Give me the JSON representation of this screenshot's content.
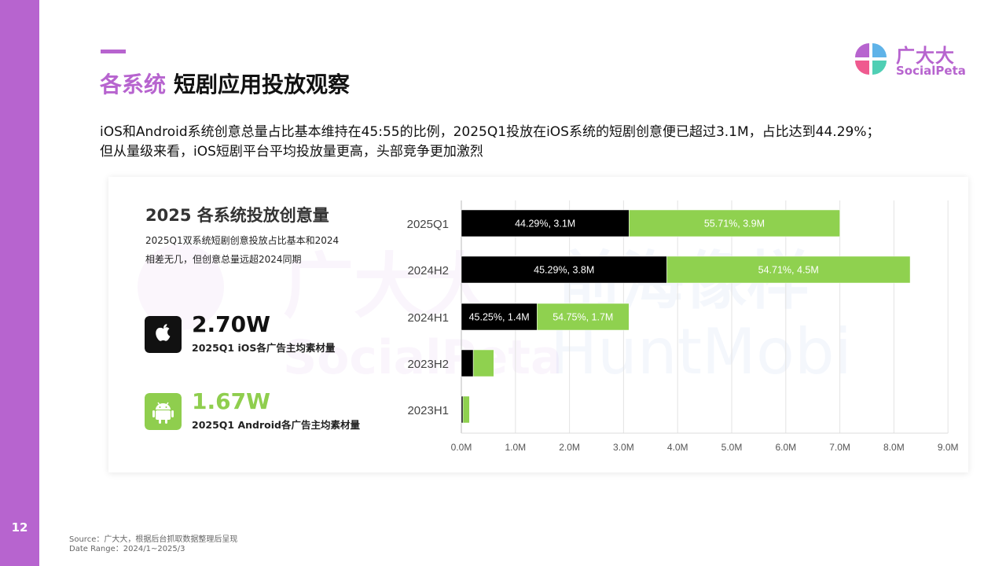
{
  "page_number": "12",
  "header": {
    "title_part1": "各系统",
    "title_part2": "短剧应用投放观察",
    "logo_cn": "广大大",
    "logo_en": "SocialPeta"
  },
  "description": "iOS和Android系统创意总量占比基本维持在45:55的比例，2025Q1投放在iOS系统的短剧创意便已超过3.1M，占比达到44.29%；但从量级来看，iOS短剧平台平均投放量更高，头部竞争更加激烈",
  "card": {
    "title": "2025 各系统投放创意量",
    "subtitle": "2025Q1双系统短剧创意投放占比基本和2024相差无几，但创意总量远超2024同期",
    "stats": [
      {
        "value": "2.70W",
        "label": "2025Q1 iOS各广告主均素材量",
        "icon": "apple-icon",
        "color": "#111111"
      },
      {
        "value": "1.67W",
        "label": "2025Q1 Android各广告主均素材量",
        "icon": "android-icon",
        "color": "#8fce4e"
      }
    ]
  },
  "chart_data": {
    "type": "bar",
    "orientation": "horizontal",
    "stacked": true,
    "categories": [
      "2025Q1",
      "2024H2",
      "2024H1",
      "2023H2",
      "2023H1"
    ],
    "series": [
      {
        "values": [
          3.1,
          3.8,
          1.4,
          0.22,
          0.03
        ],
        "color": "#000000",
        "labels": [
          "44.29%, 3.1M",
          "45.29%, 3.8M",
          "45.25%, 1.4M",
          "",
          ""
        ]
      },
      {
        "values": [
          3.9,
          4.5,
          1.7,
          0.38,
          0.12
        ],
        "color": "#8fd14f",
        "labels": [
          "55.71%, 3.9M",
          "54.71%, 4.5M",
          "54.75%, 1.7M",
          "",
          ""
        ]
      }
    ],
    "xlim": [
      0,
      9
    ],
    "xticks": [
      "0.0M",
      "1.0M",
      "2.0M",
      "3.0M",
      "4.0M",
      "5.0M",
      "6.0M",
      "7.0M",
      "8.0M",
      "9.0M"
    ],
    "grid": true
  },
  "source": {
    "line1": "Source：广大大，根据后台抓取数据整理后呈现",
    "line2": "Date Range：2024/1~2025/3"
  }
}
